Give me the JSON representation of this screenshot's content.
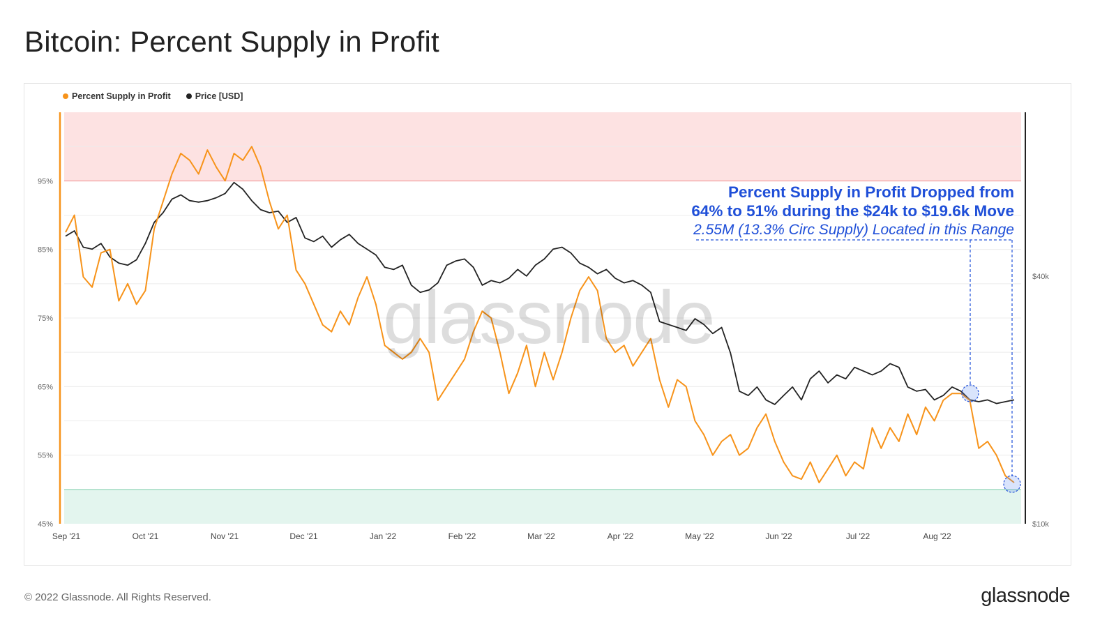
{
  "title": "Bitcoin: Percent Supply in Profit",
  "footer": {
    "copyright": "© 2022 Glassnode. All Rights Reserved.",
    "logo": "glassnode"
  },
  "watermark": "glassnode",
  "legend": [
    {
      "label": "Percent Supply in Profit",
      "color": "#f7931a"
    },
    {
      "label": "Price [USD]",
      "color": "#222222"
    }
  ],
  "annotation": {
    "line1": "Percent Supply in Profit Dropped from",
    "line2": "64% to 51% during the $24k to $19.6k Move",
    "line3": "2.55M (13.3% Circ Supply) Located in this Range",
    "color": "#1f4fd8"
  },
  "chart_data": {
    "type": "line",
    "title": "Bitcoin: Percent Supply in Profit",
    "x_ticks": [
      "Sep '21",
      "Oct '21",
      "Nov '21",
      "Dec '21",
      "Jan '22",
      "Feb '22",
      "Mar '22",
      "Apr '22",
      "May '22",
      "Jun '22",
      "Jul '22",
      "Aug '22"
    ],
    "y_left": {
      "ticks": [
        "45%",
        "55%",
        "65%",
        "75%",
        "85%",
        "95%"
      ],
      "range": [
        45,
        105
      ]
    },
    "y_right": {
      "ticks": [
        "$10k",
        "$40k"
      ],
      "scale": "log"
    },
    "bands": [
      {
        "from": 95,
        "to": 105,
        "color": "#fde2e2",
        "edge": "#f08a8a"
      },
      {
        "from": 45,
        "to": 50,
        "color": "#e3f5ee",
        "edge": "#7fcfac"
      }
    ],
    "series": [
      {
        "name": "Percent Supply in Profit",
        "color": "#f7931a",
        "values": [
          [
            "Sep '21",
            87.5
          ],
          [
            "Sep '21",
            90
          ],
          [
            "Sep '21",
            81
          ],
          [
            "Sep '21",
            79.5
          ],
          [
            "Sep '21",
            84.5
          ],
          [
            "Sep '21",
            85
          ],
          [
            "Sep '21",
            77.5
          ],
          [
            "Sep '21",
            80
          ],
          [
            "Sep '21",
            77
          ],
          [
            "Oct '21",
            79
          ],
          [
            "Oct '21",
            88
          ],
          [
            "Oct '21",
            92
          ],
          [
            "Oct '21",
            96
          ],
          [
            "Oct '21",
            99
          ],
          [
            "Oct '21",
            98
          ],
          [
            "Oct '21",
            96
          ],
          [
            "Oct '21",
            99.5
          ],
          [
            "Oct '21",
            97
          ],
          [
            "Nov '21",
            95
          ],
          [
            "Nov '21",
            99
          ],
          [
            "Nov '21",
            98
          ],
          [
            "Nov '21",
            100
          ],
          [
            "Nov '21",
            97
          ],
          [
            "Nov '21",
            92
          ],
          [
            "Nov '21",
            88
          ],
          [
            "Nov '21",
            90
          ],
          [
            "Nov '21",
            82
          ],
          [
            "Dec '21",
            80
          ],
          [
            "Dec '21",
            77
          ],
          [
            "Dec '21",
            74
          ],
          [
            "Dec '21",
            73
          ],
          [
            "Dec '21",
            76
          ],
          [
            "Dec '21",
            74
          ],
          [
            "Dec '21",
            78
          ],
          [
            "Dec '21",
            81
          ],
          [
            "Dec '21",
            77
          ],
          [
            "Jan '22",
            71
          ],
          [
            "Jan '22",
            70
          ],
          [
            "Jan '22",
            69
          ],
          [
            "Jan '22",
            70
          ],
          [
            "Jan '22",
            72
          ],
          [
            "Jan '22",
            70
          ],
          [
            "Jan '22",
            63
          ],
          [
            "Jan '22",
            65
          ],
          [
            "Jan '22",
            67
          ],
          [
            "Feb '22",
            69
          ],
          [
            "Feb '22",
            73
          ],
          [
            "Feb '22",
            76
          ],
          [
            "Feb '22",
            75
          ],
          [
            "Feb '22",
            70
          ],
          [
            "Feb '22",
            64
          ],
          [
            "Feb '22",
            67
          ],
          [
            "Feb '22",
            71
          ],
          [
            "Feb '22",
            65
          ],
          [
            "Mar '22",
            70
          ],
          [
            "Mar '22",
            66
          ],
          [
            "Mar '22",
            70
          ],
          [
            "Mar '22",
            75
          ],
          [
            "Mar '22",
            79
          ],
          [
            "Mar '22",
            81
          ],
          [
            "Mar '22",
            79
          ],
          [
            "Mar '22",
            72
          ],
          [
            "Mar '22",
            70
          ],
          [
            "Apr '22",
            71
          ],
          [
            "Apr '22",
            68
          ],
          [
            "Apr '22",
            70
          ],
          [
            "Apr '22",
            72
          ],
          [
            "Apr '22",
            66
          ],
          [
            "Apr '22",
            62
          ],
          [
            "Apr '22",
            66
          ],
          [
            "Apr '22",
            65
          ],
          [
            "Apr '22",
            60
          ],
          [
            "May '22",
            58
          ],
          [
            "May '22",
            55
          ],
          [
            "May '22",
            57
          ],
          [
            "May '22",
            58
          ],
          [
            "May '22",
            55
          ],
          [
            "May '22",
            56
          ],
          [
            "May '22",
            59
          ],
          [
            "May '22",
            61
          ],
          [
            "May '22",
            57
          ],
          [
            "Jun '22",
            54
          ],
          [
            "Jun '22",
            52
          ],
          [
            "Jun '22",
            51.5
          ],
          [
            "Jun '22",
            54
          ],
          [
            "Jun '22",
            51
          ],
          [
            "Jun '22",
            53
          ],
          [
            "Jun '22",
            55
          ],
          [
            "Jun '22",
            52
          ],
          [
            "Jun '22",
            54
          ],
          [
            "Jul '22",
            53
          ],
          [
            "Jul '22",
            59
          ],
          [
            "Jul '22",
            56
          ],
          [
            "Jul '22",
            59
          ],
          [
            "Jul '22",
            57
          ],
          [
            "Jul '22",
            61
          ],
          [
            "Jul '22",
            58
          ],
          [
            "Jul '22",
            62
          ],
          [
            "Jul '22",
            60
          ],
          [
            "Aug '22",
            63
          ],
          [
            "Aug '22",
            64
          ],
          [
            "Aug '22",
            64
          ],
          [
            "Aug '22",
            63
          ],
          [
            "Aug '22",
            56
          ],
          [
            "Aug '22",
            57
          ],
          [
            "Aug '22",
            55
          ],
          [
            "Aug '22",
            52
          ],
          [
            "Aug '22",
            51
          ]
        ]
      },
      {
        "name": "Price [USD]",
        "color": "#222222",
        "values": [
          [
            "Sep '21",
            50000
          ],
          [
            "Sep '21",
            51500
          ],
          [
            "Sep '21",
            47000
          ],
          [
            "Sep '21",
            46500
          ],
          [
            "Sep '21",
            48000
          ],
          [
            "Sep '21",
            44500
          ],
          [
            "Sep '21",
            43000
          ],
          [
            "Sep '21",
            42500
          ],
          [
            "Sep '21",
            43800
          ],
          [
            "Oct '21",
            48000
          ],
          [
            "Oct '21",
            54000
          ],
          [
            "Oct '21",
            57000
          ],
          [
            "Oct '21",
            61500
          ],
          [
            "Oct '21",
            63000
          ],
          [
            "Oct '21",
            61000
          ],
          [
            "Oct '21",
            60500
          ],
          [
            "Oct '21",
            61000
          ],
          [
            "Oct '21",
            62000
          ],
          [
            "Nov '21",
            63500
          ],
          [
            "Nov '21",
            67500
          ],
          [
            "Nov '21",
            65000
          ],
          [
            "Nov '21",
            61000
          ],
          [
            "Nov '21",
            58000
          ],
          [
            "Nov '21",
            57000
          ],
          [
            "Nov '21",
            57500
          ],
          [
            "Nov '21",
            54000
          ],
          [
            "Nov '21",
            55500
          ],
          [
            "Dec '21",
            49500
          ],
          [
            "Dec '21",
            48500
          ],
          [
            "Dec '21",
            50000
          ],
          [
            "Dec '21",
            47000
          ],
          [
            "Dec '21",
            49000
          ],
          [
            "Dec '21",
            50500
          ],
          [
            "Dec '21",
            48000
          ],
          [
            "Dec '21",
            46500
          ],
          [
            "Dec '21",
            45000
          ],
          [
            "Jan '22",
            42000
          ],
          [
            "Jan '22",
            41500
          ],
          [
            "Jan '22",
            42500
          ],
          [
            "Jan '22",
            38000
          ],
          [
            "Jan '22",
            36500
          ],
          [
            "Jan '22",
            37000
          ],
          [
            "Jan '22",
            38500
          ],
          [
            "Jan '22",
            42500
          ],
          [
            "Jan '22",
            43500
          ],
          [
            "Feb '22",
            44000
          ],
          [
            "Feb '22",
            42000
          ],
          [
            "Feb '22",
            38000
          ],
          [
            "Feb '22",
            39000
          ],
          [
            "Feb '22",
            38500
          ],
          [
            "Feb '22",
            39500
          ],
          [
            "Feb '22",
            41500
          ],
          [
            "Feb '22",
            40000
          ],
          [
            "Feb '22",
            42500
          ],
          [
            "Mar '22",
            44000
          ],
          [
            "Mar '22",
            46500
          ],
          [
            "Mar '22",
            47000
          ],
          [
            "Mar '22",
            45500
          ],
          [
            "Mar '22",
            43000
          ],
          [
            "Mar '22",
            42000
          ],
          [
            "Mar '22",
            40500
          ],
          [
            "Mar '22",
            41500
          ],
          [
            "Mar '22",
            39500
          ],
          [
            "Apr '22",
            38500
          ],
          [
            "Apr '22",
            39000
          ],
          [
            "Apr '22",
            38000
          ],
          [
            "Apr '22",
            36500
          ],
          [
            "Apr '22",
            31000
          ],
          [
            "Apr '22",
            30500
          ],
          [
            "Apr '22",
            30000
          ],
          [
            "Apr '22",
            29500
          ],
          [
            "Apr '22",
            31500
          ],
          [
            "May '22",
            30500
          ],
          [
            "May '22",
            29000
          ],
          [
            "May '22",
            30000
          ],
          [
            "May '22",
            26000
          ],
          [
            "May '22",
            21000
          ],
          [
            "May '22",
            20500
          ],
          [
            "May '22",
            21500
          ],
          [
            "May '22",
            20000
          ],
          [
            "May '22",
            19500
          ],
          [
            "Jun '22",
            20500
          ],
          [
            "Jun '22",
            21500
          ],
          [
            "Jun '22",
            20000
          ],
          [
            "Jun '22",
            22500
          ],
          [
            "Jun '22",
            23500
          ],
          [
            "Jun '22",
            22000
          ],
          [
            "Jun '22",
            23000
          ],
          [
            "Jun '22",
            22500
          ],
          [
            "Jun '22",
            24000
          ],
          [
            "Jul '22",
            23500
          ],
          [
            "Jul '22",
            23000
          ],
          [
            "Jul '22",
            23500
          ],
          [
            "Jul '22",
            24500
          ],
          [
            "Jul '22",
            24000
          ],
          [
            "Jul '22",
            21500
          ],
          [
            "Jul '22",
            21000
          ],
          [
            "Jul '22",
            21200
          ],
          [
            "Jul '22",
            20000
          ],
          [
            "Aug '22",
            20500
          ],
          [
            "Aug '22",
            21500
          ],
          [
            "Aug '22",
            21000
          ],
          [
            "Aug '22",
            20000
          ],
          [
            "Aug '22",
            19800
          ],
          [
            "Aug '22",
            20000
          ],
          [
            "Aug '22",
            19600
          ],
          [
            "Aug '22",
            19800
          ],
          [
            "Aug '22",
            20000
          ]
        ]
      }
    ],
    "legend_position": "top-left",
    "grid": true
  }
}
